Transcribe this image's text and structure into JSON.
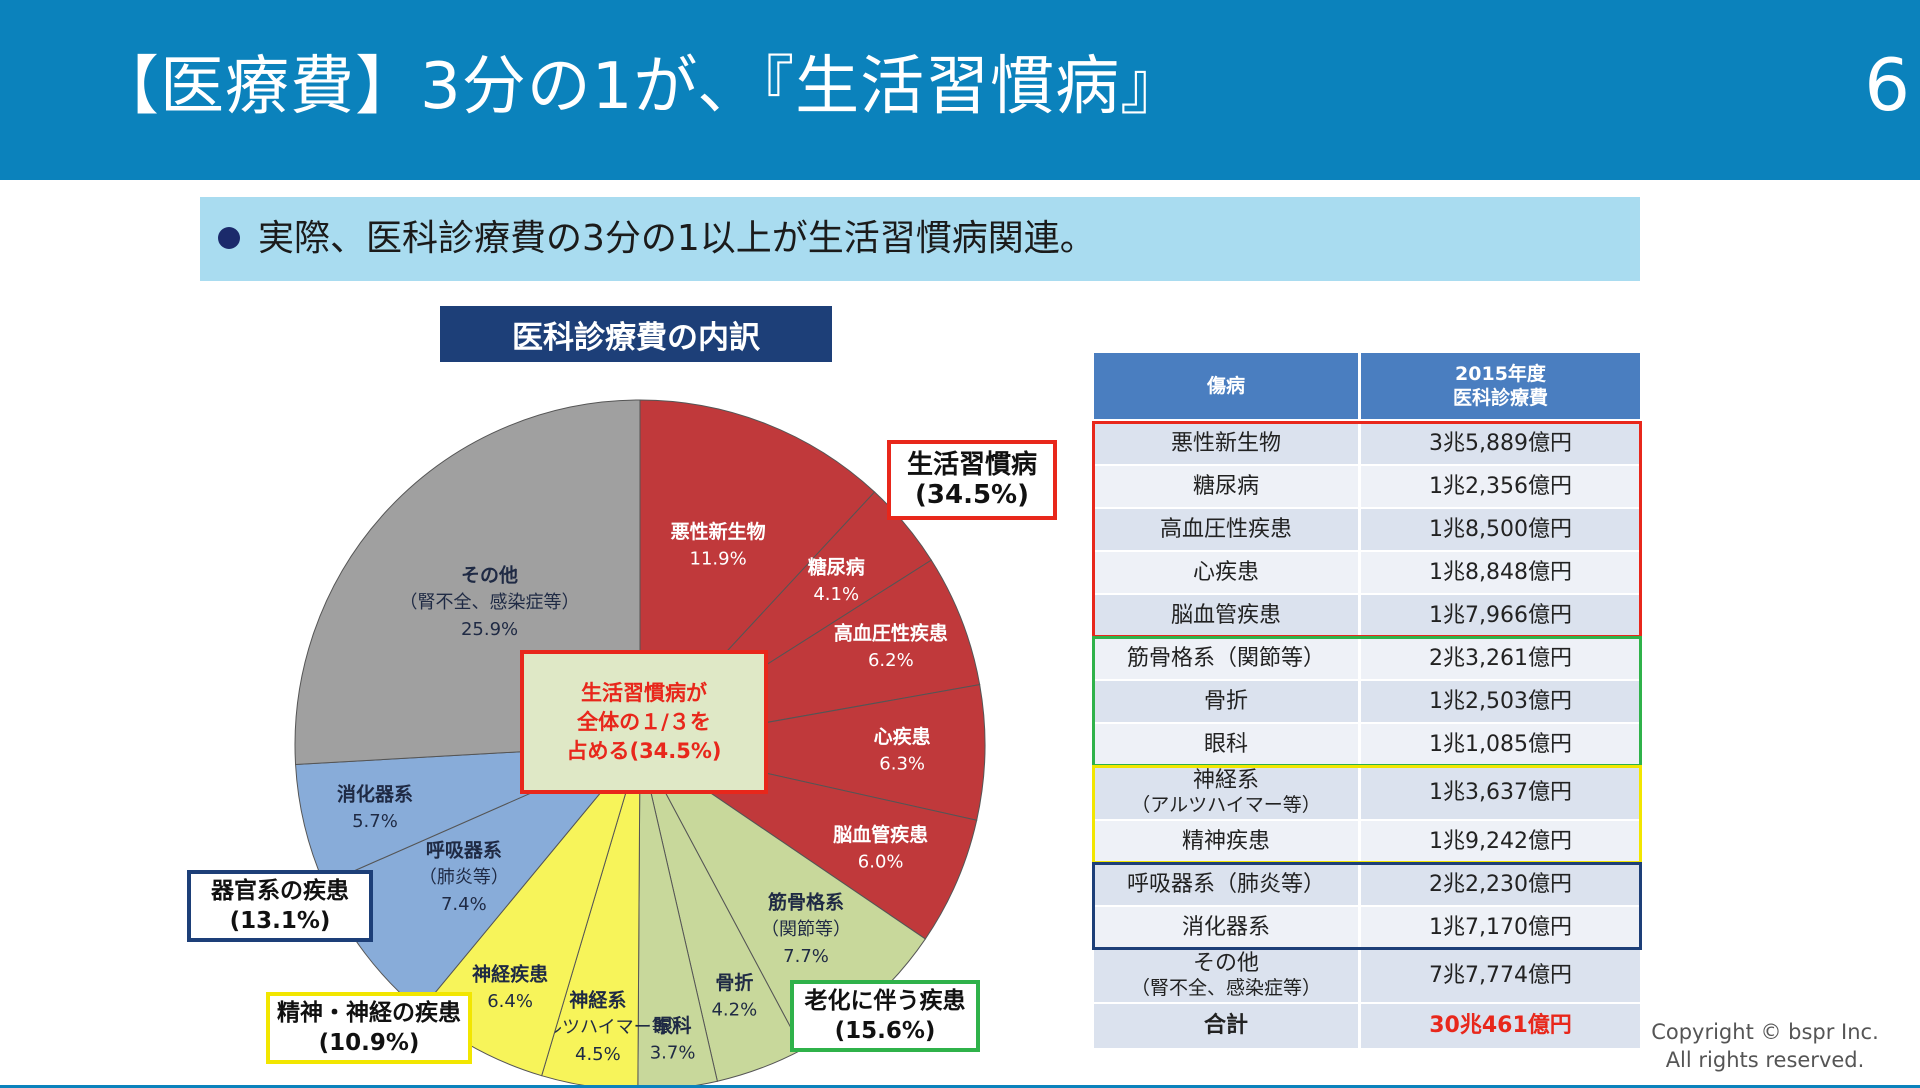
{
  "header": {
    "title": "【医療費】3分の1が、『生活習慣病』",
    "page_number": "6"
  },
  "banner": {
    "text": "実際、医科診療費の3分の1以上が生活習慣病関連。"
  },
  "chart_title": "医科診療費の内訳",
  "chart_data": {
    "type": "pie",
    "start": "12 o'clock, clockwise",
    "slices": [
      {
        "label": "悪性新生物",
        "pct_text": "11.9%",
        "value": 11.9,
        "color": "#c0393b"
      },
      {
        "label": "糖尿病",
        "pct_text": "4.1%",
        "value": 4.1,
        "color": "#c0393b"
      },
      {
        "label": "高血圧性疾患",
        "pct_text": "6.2%",
        "value": 6.2,
        "color": "#c0393b"
      },
      {
        "label": "心疾患",
        "pct_text": "6.3%",
        "value": 6.3,
        "color": "#c0393b"
      },
      {
        "label": "脳血管疾患",
        "pct_text": "6.0%",
        "value": 6.0,
        "color": "#c0393b"
      },
      {
        "label": "筋骨格系",
        "sublabel": "（関節等）",
        "pct_text": "7.7%",
        "value": 7.7,
        "color": "#c8d89b"
      },
      {
        "label": "骨折",
        "pct_text": "4.2%",
        "value": 4.2,
        "color": "#c8d89b"
      },
      {
        "label": "眼科",
        "pct_text": "3.7%",
        "value": 3.7,
        "color": "#c8d89b"
      },
      {
        "label": "神経系",
        "sublabel": "（アルツハイマー等）",
        "pct_text": "4.5%",
        "value": 4.5,
        "color": "#f7f45a"
      },
      {
        "label": "神経疾患",
        "pct_text": "6.4%",
        "value": 6.4,
        "color": "#f7f45a"
      },
      {
        "label": "呼吸器系",
        "sublabel": "（肺炎等）",
        "pct_text": "7.4%",
        "value": 7.4,
        "color": "#88acd9"
      },
      {
        "label": "消化器系",
        "pct_text": "5.7%",
        "value": 5.7,
        "color": "#88acd9"
      },
      {
        "label": "その他",
        "sublabel": "（腎不全、感染症等）",
        "pct_text": "25.9%",
        "value": 25.9,
        "color": "#a0a0a0"
      }
    ],
    "groups": [
      {
        "name": "生活習慣病",
        "pct_text": "(34.5%)",
        "color": "#e8271b"
      },
      {
        "name": "老化に伴う疾患",
        "pct_text": "(15.6%)",
        "color": "#2fb24a"
      },
      {
        "name": "精神・神経の疾患",
        "pct_text": "(10.9%)",
        "color": "#f2e600"
      },
      {
        "name": "器官系の疾患",
        "pct_text": "(13.1%)",
        "color": "#1d3f78"
      }
    ],
    "center_note": [
      "生活習慣病が",
      "全体の１/３を",
      "占める(34.5%)"
    ]
  },
  "table": {
    "headers": {
      "disease": "傷病",
      "cost_line1": "2015年度",
      "cost_line2": "医科診療費"
    },
    "rows": [
      {
        "disease": "悪性新生物",
        "cost": "3兆5,889億円",
        "group": "lifestyle"
      },
      {
        "disease": "糖尿病",
        "cost": "1兆2,356億円",
        "group": "lifestyle"
      },
      {
        "disease": "高血圧性疾患",
        "cost": "1兆8,500億円",
        "group": "lifestyle"
      },
      {
        "disease": "心疾患",
        "cost": "1兆8,848億円",
        "group": "lifestyle"
      },
      {
        "disease": "脳血管疾患",
        "cost": "1兆7,966億円",
        "group": "lifestyle"
      },
      {
        "disease": "筋骨格系（関節等）",
        "cost": "2兆3,261億円",
        "group": "aging"
      },
      {
        "disease": "骨折",
        "cost": "1兆2,503億円",
        "group": "aging"
      },
      {
        "disease": "眼科",
        "cost": "1兆1,085億円",
        "group": "aging"
      },
      {
        "disease": "神経系",
        "disease_sub": "（アルツハイマー等）",
        "cost": "1兆3,637億円",
        "group": "mental"
      },
      {
        "disease": "精神疾患",
        "cost": "1兆9,242億円",
        "group": "mental"
      },
      {
        "disease": "呼吸器系（肺炎等）",
        "cost": "2兆2,230億円",
        "group": "organ"
      },
      {
        "disease": "消化器系",
        "cost": "1兆7,170億円",
        "group": "organ"
      },
      {
        "disease": "その他",
        "disease_sub": "（腎不全、感染症等）",
        "cost": "7兆7,774億円",
        "group": "other"
      }
    ],
    "total": {
      "label": "合計",
      "cost": "30兆461億円"
    }
  },
  "copyright": {
    "line1": "Copyright © bspr Inc.",
    "line2": "All rights reserved."
  },
  "colors": {
    "header_bg": "#0b82bc",
    "banner_bg": "#a9dcf0",
    "table_header": "#4a7ec0",
    "row_a": "#dbe2ee",
    "row_b": "#eef1f7",
    "total_text": "#e8271b"
  }
}
